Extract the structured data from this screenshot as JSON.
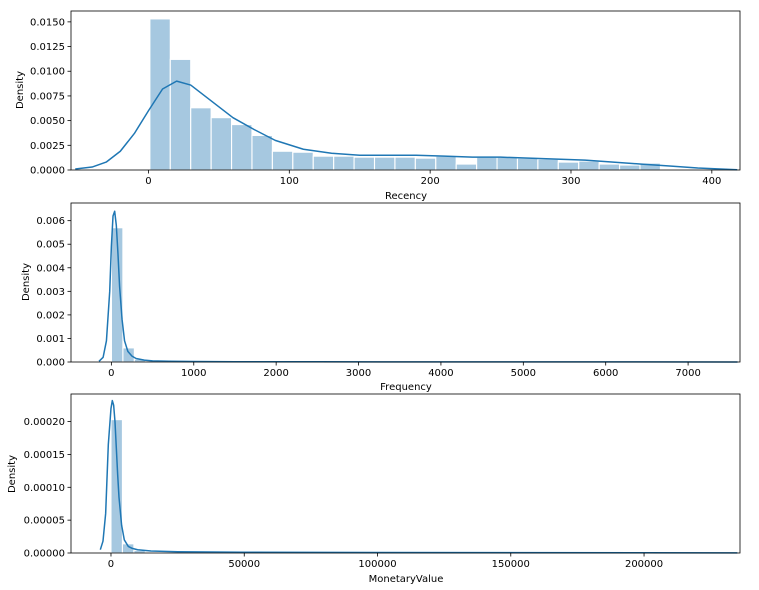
{
  "chart_data": [
    {
      "type": "bar",
      "xlabel": "Recency",
      "ylabel": "Density",
      "xlim": [
        -55,
        420
      ],
      "ylim": [
        0,
        0.0161
      ],
      "xticks": [
        0,
        100,
        200,
        300,
        400
      ],
      "yticks": [
        0.0,
        0.0025,
        0.005,
        0.0075,
        0.01,
        0.0125,
        0.015
      ],
      "ytick_labels": [
        "0.0000",
        "0.0025",
        "0.0050",
        "0.0075",
        "0.0100",
        "0.0125",
        "0.0150"
      ],
      "bar_color": "#a6c8e0",
      "line_color": "#1f77b4",
      "histogram": {
        "bin_edges": [
          1,
          15.5,
          30,
          44.5,
          59,
          73.5,
          88,
          102.5,
          117,
          131.5,
          146,
          160.5,
          175,
          189.5,
          204,
          218.5,
          233,
          247.5,
          262,
          276.5,
          291,
          305.5,
          320,
          334.5,
          349,
          363.5
        ],
        "values": [
          0.0153,
          0.0112,
          0.0063,
          0.0053,
          0.0046,
          0.0035,
          0.0019,
          0.0018,
          0.0014,
          0.0014,
          0.0013,
          0.0013,
          0.0013,
          0.0012,
          0.0014,
          0.0006,
          0.0013,
          0.0013,
          0.0012,
          0.0011,
          0.0008,
          0.0009,
          0.0006,
          0.0005,
          0.0007
        ]
      },
      "kde": {
        "x": [
          -52,
          -40,
          -30,
          -20,
          -10,
          0,
          10,
          20,
          30,
          40,
          50,
          60,
          75,
          90,
          110,
          130,
          150,
          170,
          190,
          210,
          230,
          250,
          270,
          290,
          310,
          330,
          350,
          370,
          390,
          410,
          418
        ],
        "y": [
          0.0001,
          0.0003,
          0.0008,
          0.0019,
          0.0037,
          0.006,
          0.0082,
          0.009,
          0.0086,
          0.0075,
          0.0064,
          0.0053,
          0.0041,
          0.003,
          0.0021,
          0.0017,
          0.0015,
          0.0015,
          0.0015,
          0.0014,
          0.0013,
          0.0013,
          0.0012,
          0.0011,
          0.001,
          0.0008,
          0.0006,
          0.0004,
          0.0002,
          8e-05,
          3e-05
        ]
      }
    },
    {
      "type": "bar",
      "xlabel": "Frequency",
      "ylabel": "Density",
      "xlim": [
        -490,
        7630
      ],
      "ylim": [
        0,
        0.00675
      ],
      "xticks": [
        0,
        1000,
        2000,
        3000,
        4000,
        5000,
        6000,
        7000
      ],
      "yticks": [
        0.0,
        0.001,
        0.002,
        0.003,
        0.004,
        0.005,
        0.006
      ],
      "ytick_labels": [
        "0.000",
        "0.001",
        "0.002",
        "0.003",
        "0.004",
        "0.005",
        "0.006"
      ],
      "bar_color": "#a6c8e0",
      "line_color": "#1f77b4",
      "histogram": {
        "bin_edges": [
          1,
          140,
          279,
          418,
          557,
          696,
          835,
          974,
          1113,
          1252
        ],
        "values": [
          0.0057,
          0.0006,
          0.00012,
          5e-05,
          3e-05,
          2e-05,
          1e-05,
          1e-05,
          1e-05
        ]
      },
      "kde": {
        "x": [
          -150,
          -100,
          -60,
          -20,
          0,
          20,
          40,
          60,
          80,
          100,
          130,
          160,
          200,
          250,
          300,
          400,
          500,
          700,
          1000,
          1500,
          2500,
          4000,
          6000,
          7600
        ],
        "y": [
          3e-05,
          0.0002,
          0.0009,
          0.003,
          0.0049,
          0.0062,
          0.0064,
          0.0058,
          0.0046,
          0.0032,
          0.0018,
          0.0009,
          0.00045,
          0.00025,
          0.00015,
          8e-05,
          5e-05,
          3e-05,
          2e-05,
          1.2e-05,
          8e-06,
          5e-06,
          3e-06,
          2e-06
        ]
      }
    },
    {
      "type": "bar",
      "xlabel": "MonetaryValue",
      "ylabel": "Density",
      "xlim": [
        -15000,
        236000
      ],
      "ylim": [
        0,
        0.000242
      ],
      "xticks": [
        0,
        50000,
        100000,
        150000,
        200000
      ],
      "yticks": [
        0.0,
        5e-05,
        0.0001,
        0.00015,
        0.0002
      ],
      "ytick_labels": [
        "0.00000",
        "0.00005",
        "0.00010",
        "0.00015",
        "0.00020"
      ],
      "bar_color": "#a6c8e0",
      "line_color": "#1f77b4",
      "histogram": {
        "bin_edges": [
          1,
          4300,
          8600,
          12900,
          17200,
          21500,
          25800
        ],
        "values": [
          0.000203,
          1.4e-05,
          4e-06,
          1.5e-06,
          1e-06,
          5e-07
        ]
      },
      "kde": {
        "x": [
          -4000,
          -3000,
          -2000,
          -1000,
          0,
          500,
          1000,
          1500,
          2000,
          2500,
          3000,
          4000,
          5000,
          6500,
          8000,
          10000,
          15000,
          25000,
          50000,
          100000,
          150000,
          200000,
          235000
        ],
        "y": [
          5e-06,
          1.8e-05,
          6e-05,
          0.000165,
          0.00022,
          0.000232,
          0.000225,
          0.0002,
          0.00016,
          0.00012,
          8.5e-05,
          4.2e-05,
          2e-05,
          1e-05,
          7e-06,
          5e-06,
          3e-06,
          2e-06,
          1.2e-06,
          8e-07,
          5e-07,
          3e-07,
          2e-07
        ]
      }
    }
  ]
}
